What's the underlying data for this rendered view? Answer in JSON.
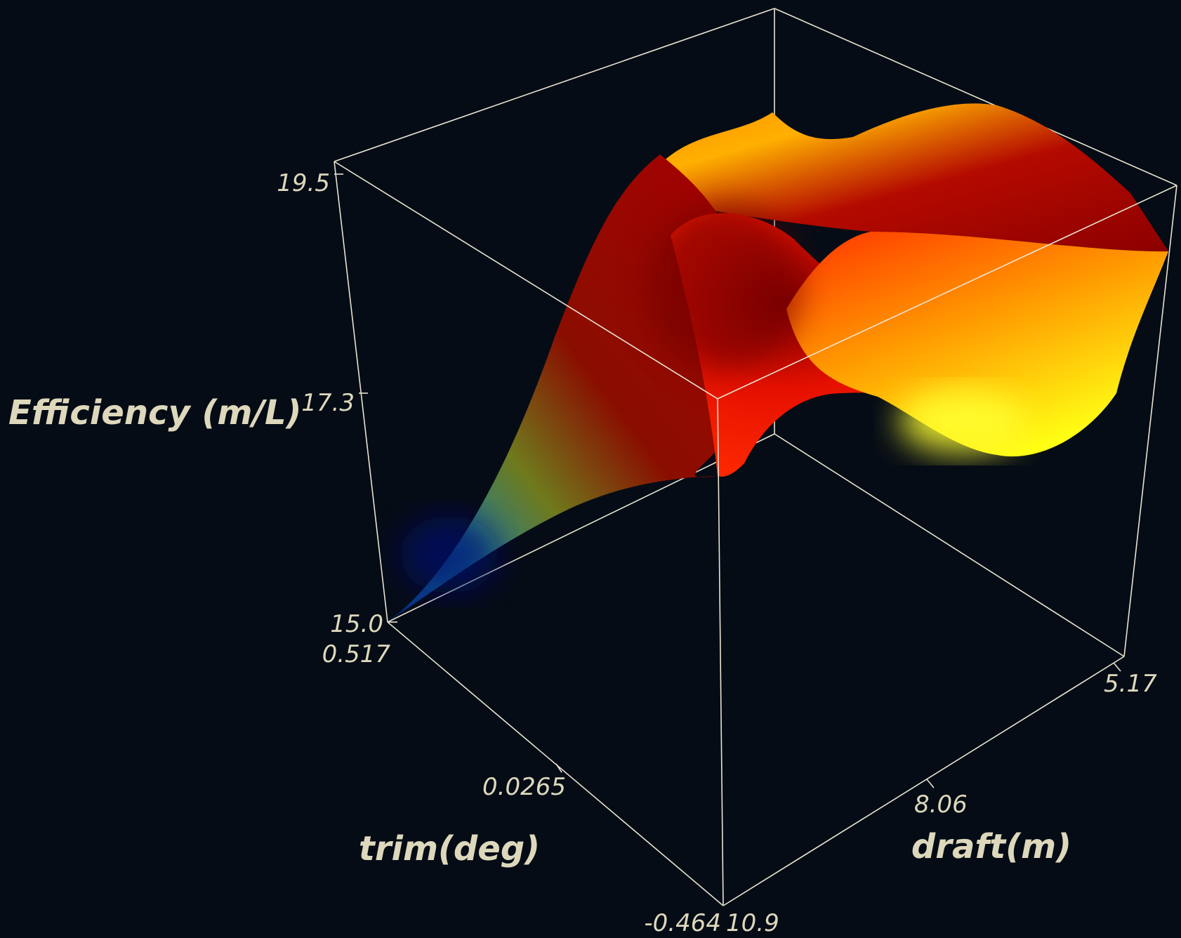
{
  "chart_data": {
    "type": "surface",
    "title": "",
    "axes": {
      "z": {
        "label": "Efficiency (m/L)",
        "range": [
          15.0,
          19.5
        ],
        "ticks": [
          "19.5",
          "17.3",
          "15.0"
        ]
      },
      "trim": {
        "label": "trim(deg)",
        "range": [
          -0.464,
          0.517
        ],
        "ticks": [
          "0.517",
          "0.0265",
          "-0.464"
        ]
      },
      "draft": {
        "label": "draft(m)",
        "range": [
          5.17,
          10.9
        ],
        "ticks": [
          "5.17",
          "8.06",
          "10.9"
        ]
      }
    },
    "colormap": [
      "#001a80",
      "#1a8ca0",
      "#7a8018",
      "#8a0000",
      "#ff1a00",
      "#ff8c00",
      "#ffff1a"
    ],
    "surface_sample": {
      "trim": [
        0.517,
        0.0265,
        -0.464
      ],
      "draft": [
        10.9,
        8.06,
        5.17
      ],
      "efficiency": [
        [
          15.0,
          16.2,
          18.3
        ],
        [
          18.3,
          19.2,
          18.9
        ],
        [
          17.1,
          17.5,
          16.9
        ]
      ]
    },
    "grid": false,
    "legend": "none"
  }
}
